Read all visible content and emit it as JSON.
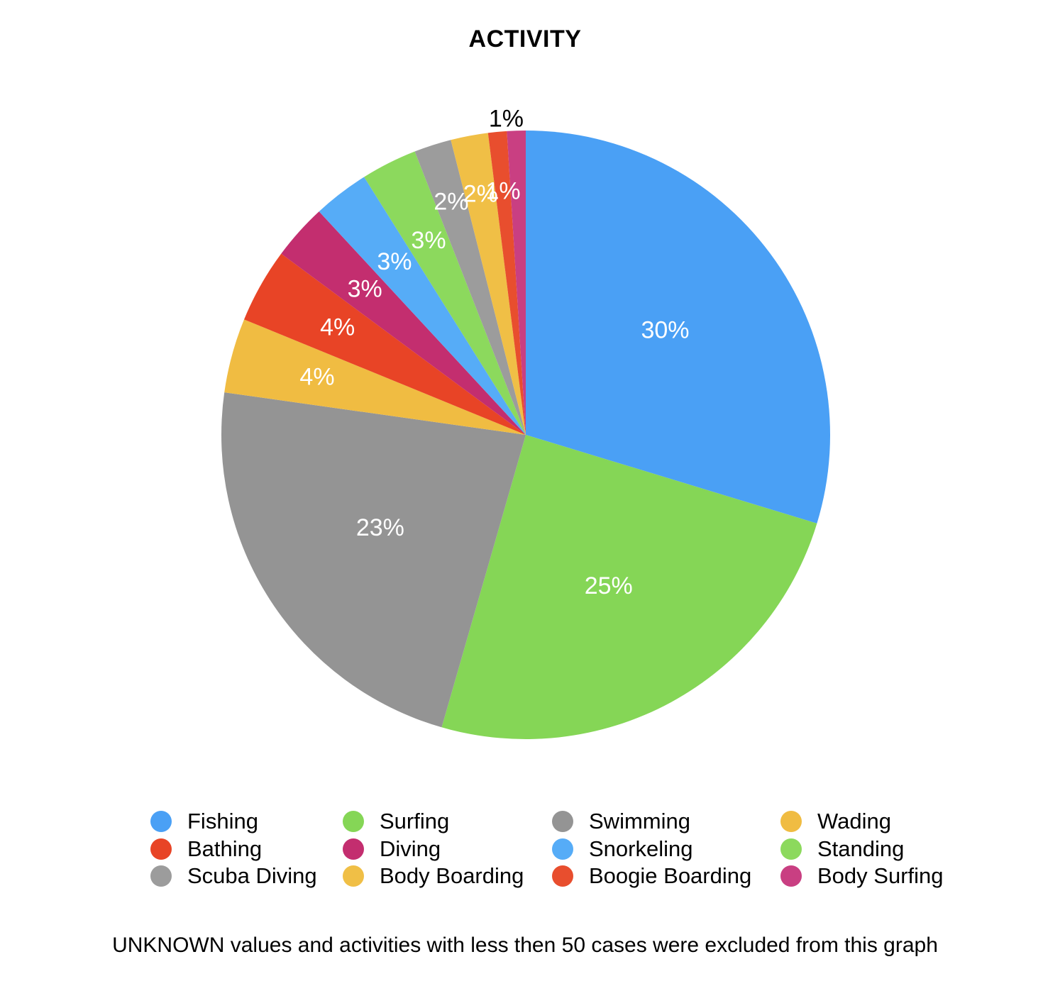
{
  "chart_data": {
    "type": "pie",
    "title": "ACTIVITY",
    "start_angle": "12 o'clock",
    "direction": "clockwise",
    "legend_position": "bottom",
    "footnote": "UNKNOWN values and activities with less then 50 cases were excluded from this graph",
    "slices": [
      {
        "name": "Fishing",
        "value": 30,
        "label": "30%",
        "color": "#4aa0f5"
      },
      {
        "name": "Surfing",
        "value": 25,
        "label": "25%",
        "color": "#85d656"
      },
      {
        "name": "Swimming",
        "value": 23,
        "label": "23%",
        "color": "#949494"
      },
      {
        "name": "Wading",
        "value": 4,
        "label": "4%",
        "color": "#f0bc42"
      },
      {
        "name": "Bathing",
        "value": 4,
        "label": "4%",
        "color": "#e84426"
      },
      {
        "name": "Diving",
        "value": 3,
        "label": "3%",
        "color": "#c32e6f"
      },
      {
        "name": "Snorkeling",
        "value": 3,
        "label": "3%",
        "color": "#56acf7"
      },
      {
        "name": "Standing",
        "value": 3,
        "label": "3%",
        "color": "#8cd95d"
      },
      {
        "name": "Scuba Diving",
        "value": 2,
        "label": "2%",
        "color": "#9c9c9c"
      },
      {
        "name": "Body Boarding",
        "value": 2,
        "label": "2%",
        "color": "#f0bf46"
      },
      {
        "name": "Boogie Boarding",
        "value": 1,
        "label": "1%",
        "color": "#e84e2e"
      },
      {
        "name": "Body Surfing",
        "value": 1,
        "label": "1%",
        "color": "#c93f82"
      }
    ]
  }
}
